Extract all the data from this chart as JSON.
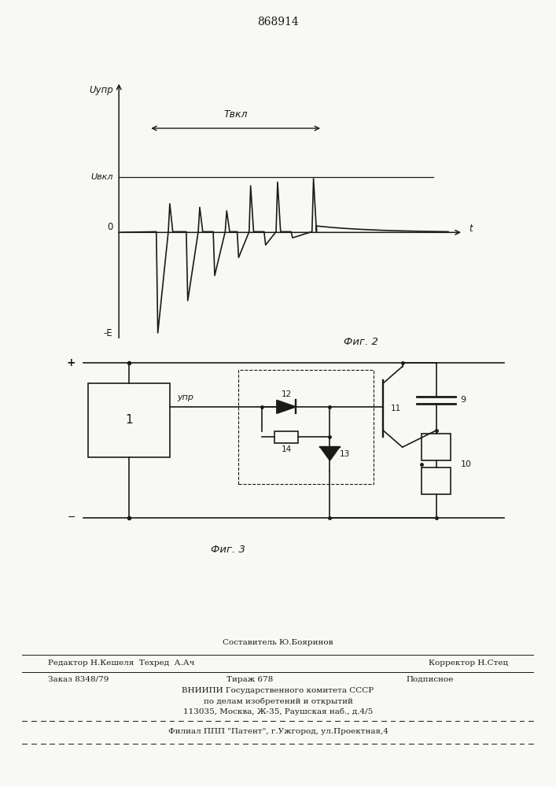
{
  "patent_number": "868914",
  "bg_color": "#f8f8f5",
  "line_color": "#1a1a1a",
  "fig2_label": "Фиг. 2",
  "fig3_label": "Фиг. 3",
  "label_Uupr": "Uупр",
  "label_Uvkl": "Uвкл",
  "label_t": "t",
  "label_0": "0",
  "label_negE": "-E",
  "label_Tvkl": "Tвкл",
  "label_Upr": "упр",
  "footer_line1": "Составитель Ю.Бояринов",
  "footer_line2_left": "Редактор Н.Кешеля  Техред  А.Ач",
  "footer_line2_right": "Корректор Н.Стец",
  "footer_line3_left": "Заказ 8348/79",
  "footer_line3_mid": "Тираж 678",
  "footer_line3_right": "Подписное",
  "footer_line4": "ВНИИПИ Государственного комитета СССР",
  "footer_line5": "по делам изобретений и открытий",
  "footer_line6": "113035, Москва, Ж-35, Раушская наб., д.4/5",
  "footer_line7": "Филиал ППП \"Патент\", г.Ужгород, ул.Проектная,4"
}
